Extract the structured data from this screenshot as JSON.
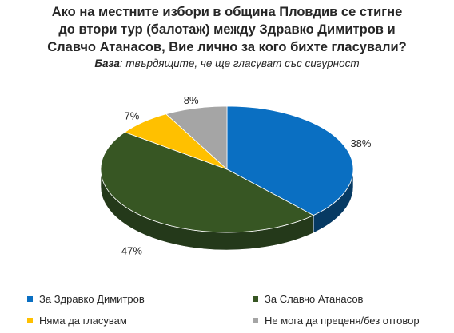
{
  "chart_data": {
    "type": "pie",
    "title": [
      "Ако на местните избори в община Пловдив се стигне",
      "до втори тур (балотаж) между Здравко Димитров и",
      "Славчо Атанасов, Вие лично за кого бихте гласували?"
    ],
    "subtitle": {
      "label": "База",
      "text": ": твърдящите, че ще гласуват със сигурност"
    },
    "slices": [
      {
        "label": "За Здравко Димитров",
        "value": 38,
        "value_label": "38%",
        "color": "#0a6fc2",
        "side_color": "#073a63"
      },
      {
        "label": "За Славчо Атанасов",
        "value": 47,
        "value_label": "47%",
        "color": "#375623",
        "side_color": "#24391a"
      },
      {
        "label": "Няма да гласувам",
        "value": 7,
        "value_label": "7%",
        "color": "#ffc000",
        "side_color": "#bf8f00"
      },
      {
        "label": "Не мога да преценя/без отговор",
        "value": 8,
        "value_label": "8%",
        "color": "#a5a5a5",
        "side_color": "#6e6e6e"
      }
    ],
    "legend_position": "bottom"
  }
}
